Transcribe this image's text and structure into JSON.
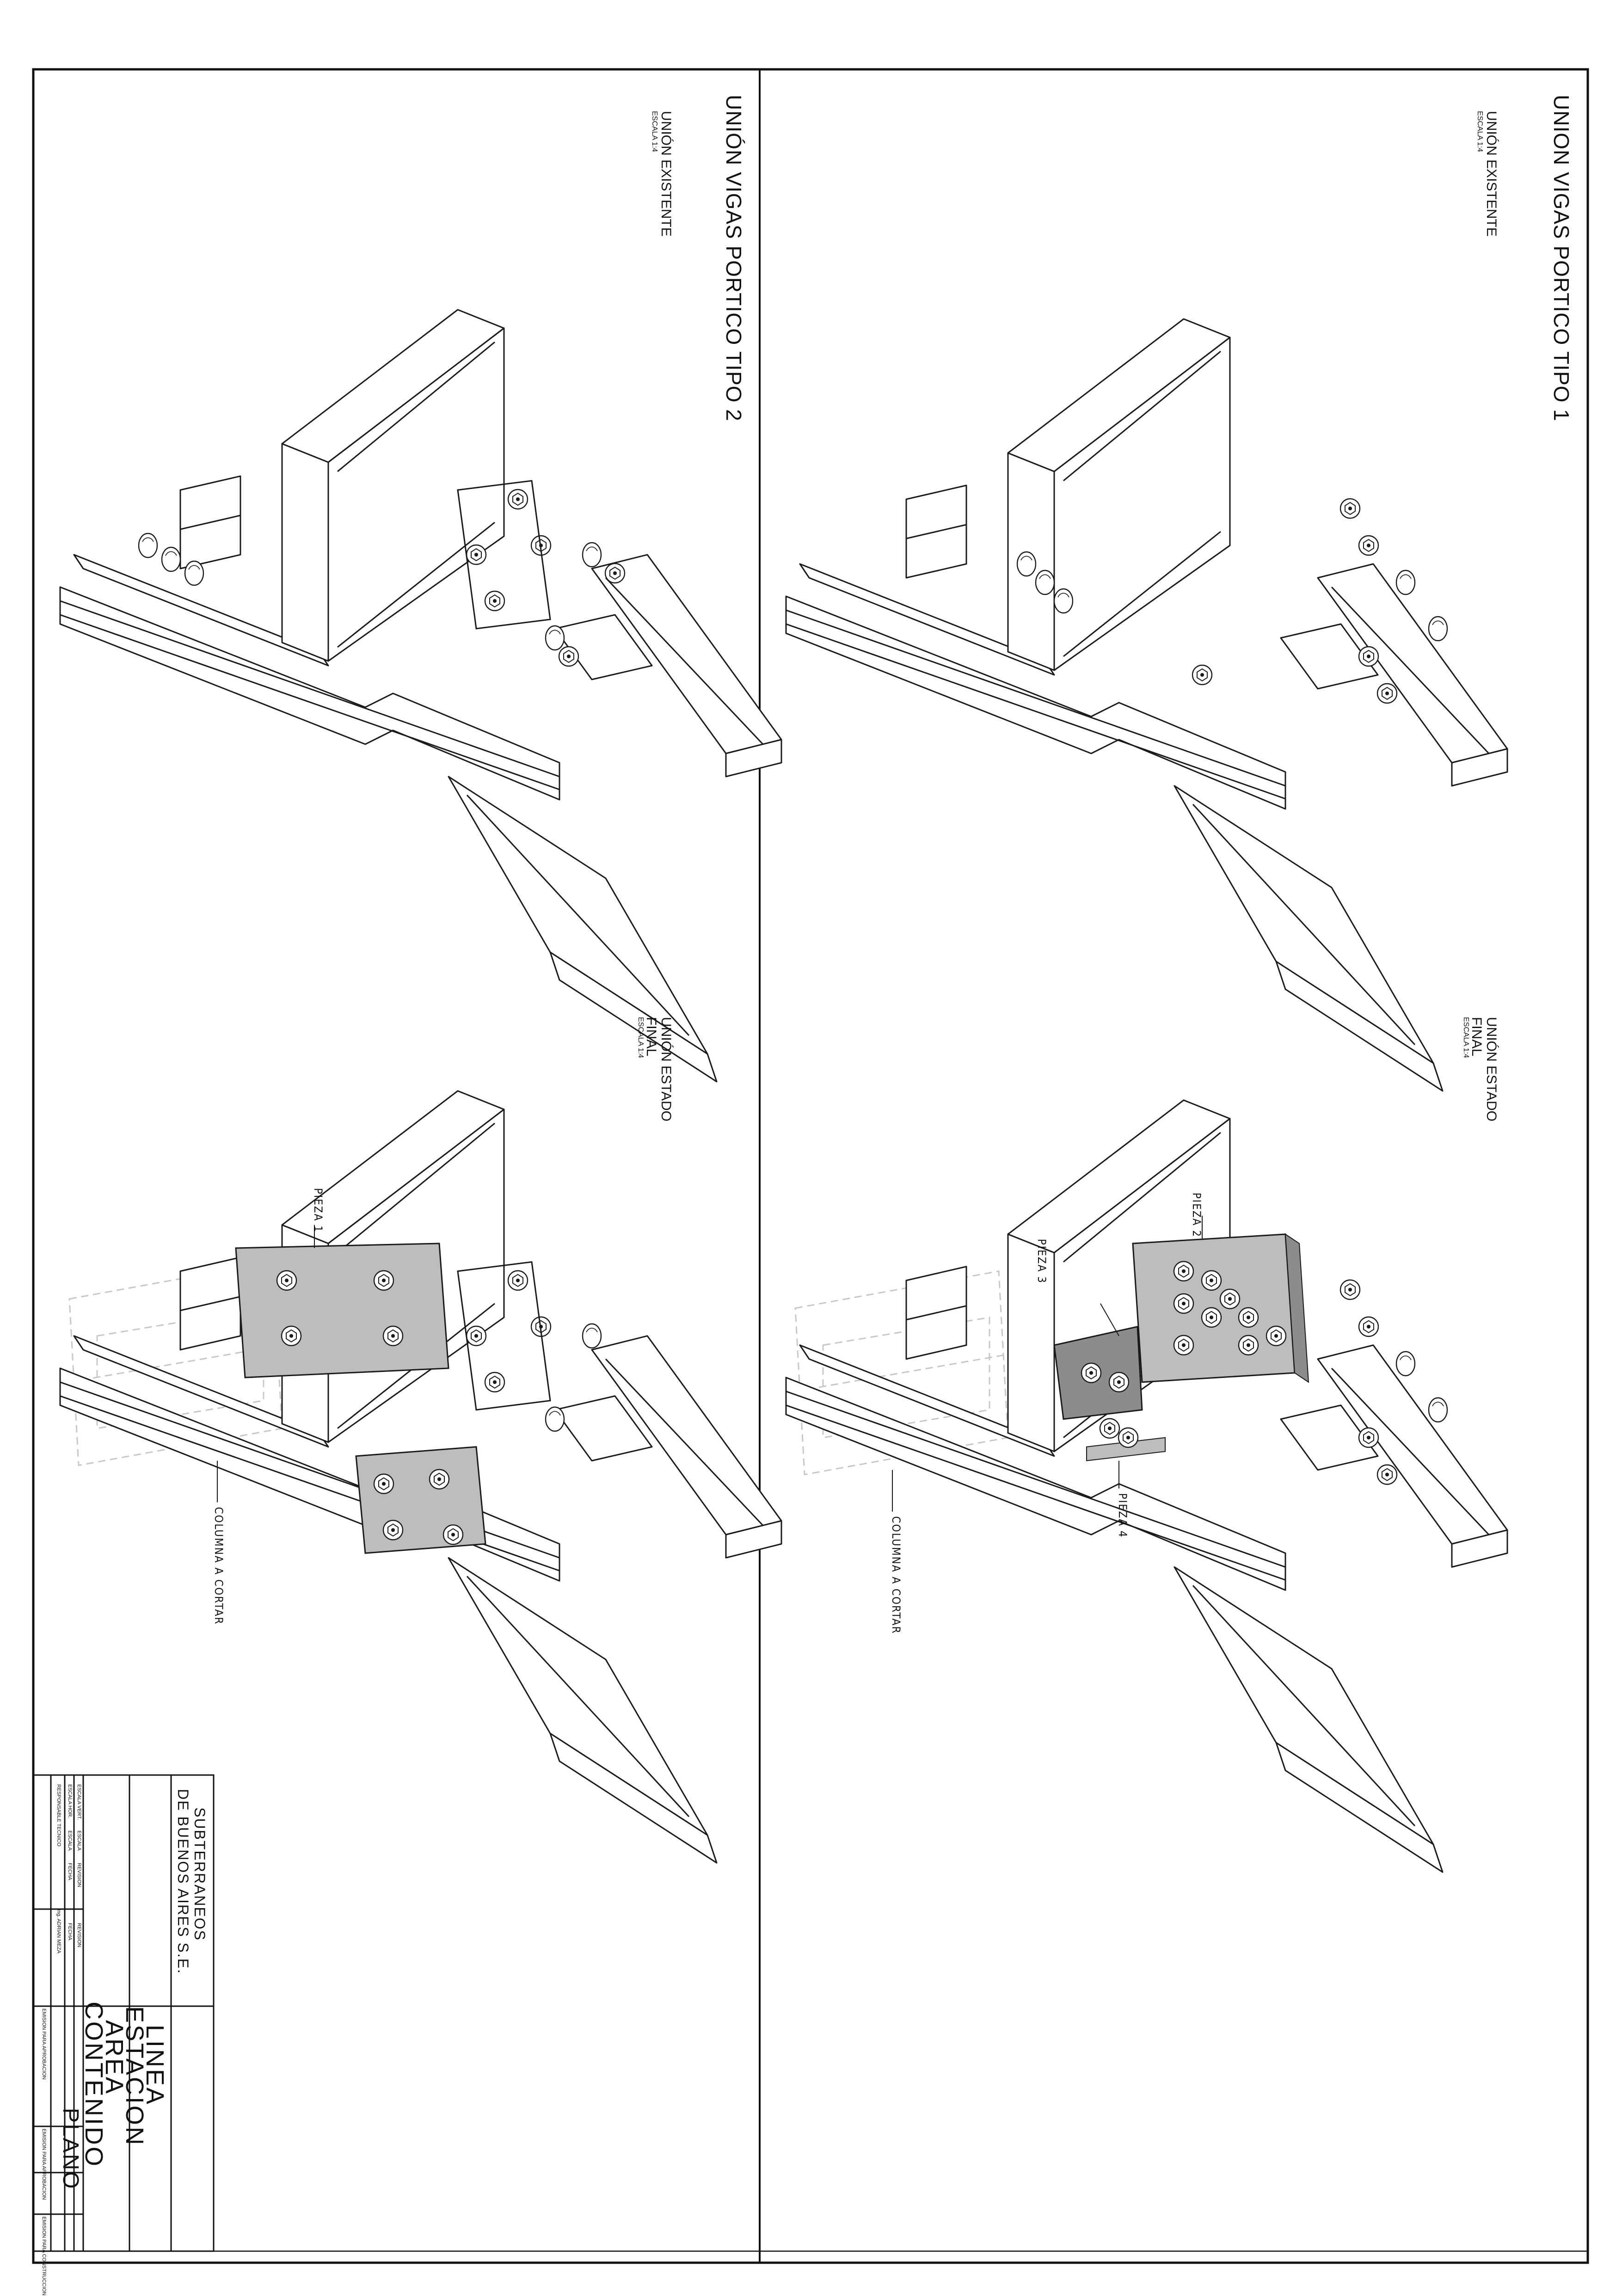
{
  "panels": [
    {
      "title": "UNION VIGAS PORTICO TIPO 1",
      "views": [
        {
          "caption": [
            "UNIÓN EXISTENTE"
          ],
          "scale": "ESCALA 1:4",
          "labels": []
        },
        {
          "caption": [
            "UNIÓN ESTADO",
            "FINAL"
          ],
          "scale": "ESCALA 1:4",
          "labels": [
            "PIEZA 2",
            "PIEZA 3",
            "PIEZA 4",
            "COLUMNA A CORTAR"
          ]
        }
      ]
    },
    {
      "title": "UNIÓN VIGAS PORTICO TIPO 2",
      "views": [
        {
          "caption": [
            "UNIÓN EXISTENTE"
          ],
          "scale": "ESCALA 1:4",
          "labels": []
        },
        {
          "caption": [
            "UNIÓN ESTADO",
            "FINAL"
          ],
          "scale": "ESCALA 1:4",
          "labels": [
            "PIEZA 1",
            "COLUMNA A CORTAR"
          ]
        }
      ]
    }
  ],
  "title_block": {
    "organization": [
      "SUBTERRANEOS",
      "DE BUENOS AIRES S.E."
    ],
    "fields": [
      "LINEA",
      "ESTACION",
      "AREA",
      "CONTENIDO"
    ],
    "plano": "PLANO",
    "grid": [
      [
        "ESCALA VERT.",
        "ESCALA",
        "REVISION",
        "REVISION"
      ],
      [
        "ESCALA HOR.",
        "ESCALA",
        "FECHA",
        "FECHA"
      ],
      [
        "RESPONSABLE TECNICO",
        "Ing. ADRIAN MEZA"
      ]
    ],
    "status": [
      "EMISION PARA APROBACION",
      "EMISION PARA APROBACION",
      "EMISION PARA CONSTRUCCION"
    ]
  },
  "colors": {
    "line": "#1a1a1a",
    "plate": "#bdbdbd",
    "plate_dark": "#8c8c8c",
    "ghost": "#c8c8c8"
  }
}
